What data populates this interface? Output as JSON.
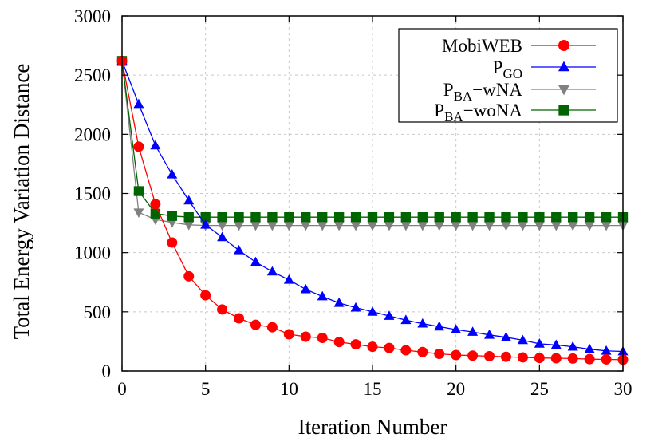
{
  "chart_data": {
    "type": "line",
    "xlabel": "Iteration Number",
    "ylabel": "Total Energy Variation Distance",
    "xlim": [
      0,
      30
    ],
    "ylim": [
      0,
      3000
    ],
    "xticks": [
      0,
      5,
      10,
      15,
      20,
      25,
      30
    ],
    "yticks": [
      0,
      500,
      1000,
      1500,
      2000,
      2500,
      3000
    ],
    "grid": true,
    "legend_position": "top-right",
    "x": [
      0,
      1,
      2,
      3,
      4,
      5,
      6,
      7,
      8,
      9,
      10,
      11,
      12,
      13,
      14,
      15,
      16,
      17,
      18,
      19,
      20,
      21,
      22,
      23,
      24,
      25,
      26,
      27,
      28,
      29,
      30
    ],
    "series": [
      {
        "name": "MobiWEB",
        "legend_main": "MobiWEB",
        "legend_sub": "",
        "legend_suffix": "",
        "color": "#ff0000",
        "marker": "circle",
        "values": [
          2620,
          1895,
          1410,
          1085,
          800,
          640,
          520,
          445,
          390,
          370,
          310,
          290,
          280,
          245,
          225,
          205,
          195,
          175,
          160,
          145,
          135,
          130,
          125,
          120,
          115,
          110,
          108,
          105,
          100,
          98,
          95
        ]
      },
      {
        "name": "PGO",
        "legend_main": "P",
        "legend_sub": "GO",
        "legend_suffix": "",
        "color": "#0000ff",
        "marker": "triangle-up",
        "values": [
          2620,
          2255,
          1905,
          1660,
          1440,
          1235,
          1130,
          1020,
          920,
          840,
          770,
          690,
          630,
          575,
          535,
          500,
          465,
          430,
          400,
          375,
          350,
          330,
          305,
          285,
          260,
          230,
          220,
          205,
          185,
          170,
          165
        ]
      },
      {
        "name": "PBA-wNA",
        "legend_main": "P",
        "legend_sub": "BA",
        "legend_suffix": "−wNA",
        "color": "#808080",
        "marker": "triangle-down",
        "values": [
          2620,
          1340,
          1280,
          1255,
          1235,
          1230,
          1230,
          1230,
          1230,
          1230,
          1230,
          1230,
          1230,
          1230,
          1230,
          1230,
          1230,
          1230,
          1230,
          1230,
          1230,
          1230,
          1230,
          1230,
          1230,
          1230,
          1230,
          1230,
          1230,
          1230,
          1230
        ]
      },
      {
        "name": "PBA-woNA",
        "legend_main": "P",
        "legend_sub": "BA",
        "legend_suffix": "−woNA",
        "color": "#006400",
        "marker": "square",
        "values": [
          2620,
          1520,
          1330,
          1310,
          1300,
          1300,
          1300,
          1300,
          1300,
          1300,
          1300,
          1300,
          1300,
          1300,
          1300,
          1300,
          1300,
          1300,
          1300,
          1300,
          1300,
          1300,
          1300,
          1300,
          1300,
          1300,
          1300,
          1300,
          1300,
          1300,
          1300
        ]
      }
    ]
  }
}
